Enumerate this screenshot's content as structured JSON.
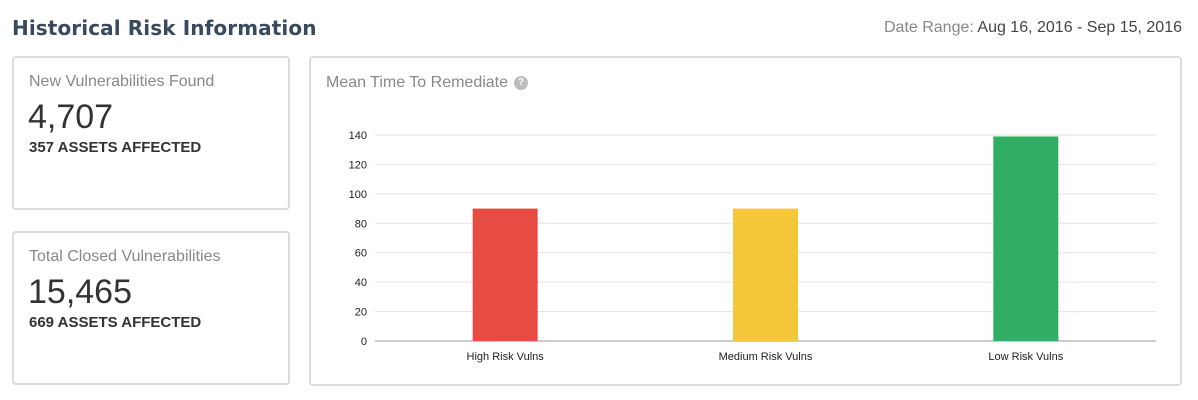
{
  "header": {
    "title": "Historical Risk Information",
    "date_range_label": "Date Range:",
    "date_range_value": "Aug 16, 2016 - Sep 15, 2016"
  },
  "stats": [
    {
      "label": "New Vulnerabilities Found",
      "value": "4,707",
      "sub": "357 ASSETS AFFECTED"
    },
    {
      "label": "Total Closed Vulnerabilities",
      "value": "15,465",
      "sub": "669 ASSETS AFFECTED"
    }
  ],
  "chart_card": {
    "title": "Mean Time To Remediate",
    "help_icon": "question-circle-icon"
  },
  "chart_data": {
    "type": "bar",
    "title": "Mean Time To Remediate",
    "categories": [
      "High Risk Vulns",
      "Medium Risk Vulns",
      "Low Risk Vulns"
    ],
    "values": [
      90,
      90,
      139
    ],
    "colors": [
      "#e74c43",
      "#f4c83a",
      "#2fae64"
    ],
    "ylim": [
      0,
      140
    ],
    "yticks": [
      0,
      20,
      40,
      60,
      80,
      100,
      120,
      140
    ],
    "xlabel": "",
    "ylabel": "",
    "grid": true,
    "legend": "none"
  }
}
